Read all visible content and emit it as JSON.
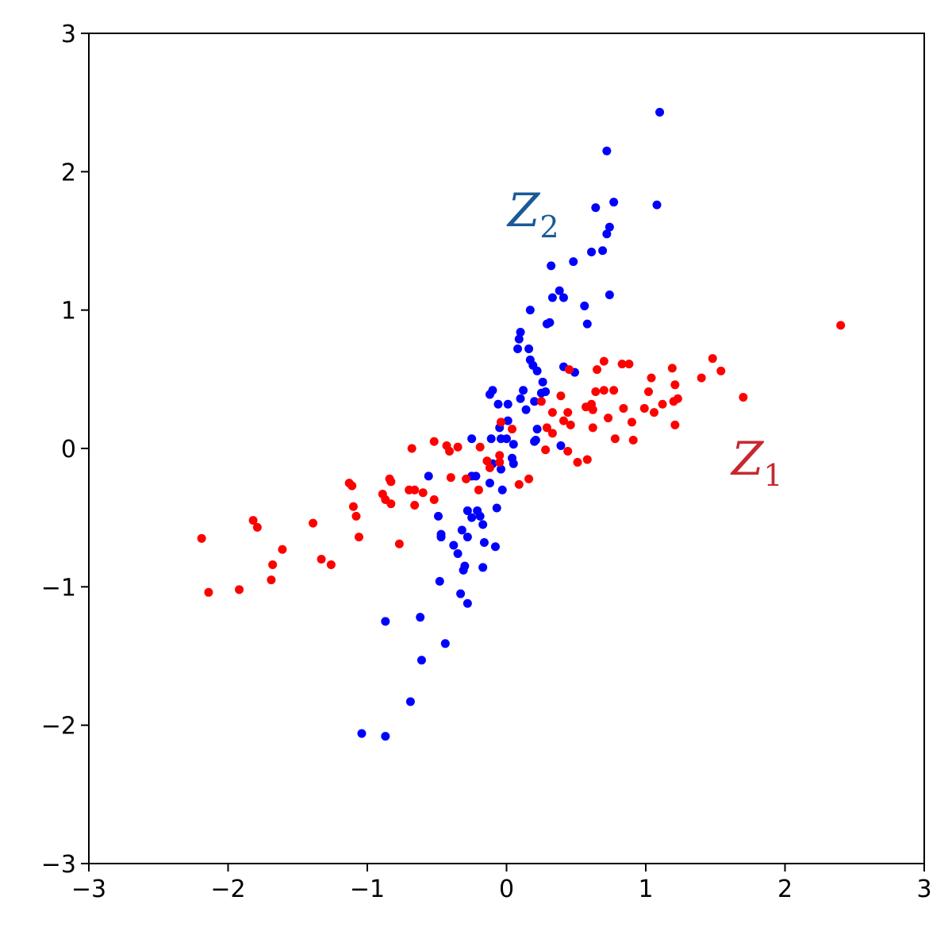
{
  "chart_data": {
    "type": "scatter",
    "xlim": [
      -3,
      3
    ],
    "ylim": [
      -3,
      3
    ],
    "xticks": [
      {
        "value": -3,
        "label": "−3"
      },
      {
        "value": -2,
        "label": "−2"
      },
      {
        "value": -1,
        "label": "−1"
      },
      0,
      1,
      2,
      3
    ],
    "yticks": [
      {
        "value": -3,
        "label": "−3"
      },
      {
        "value": -2,
        "label": "−2"
      },
      {
        "value": -1,
        "label": "−1"
      },
      0,
      1,
      2,
      3
    ],
    "annotations": [
      {
        "text": "Z",
        "subscript": "2",
        "color": "#1a5a96"
      },
      {
        "text": "Z",
        "subscript": "1",
        "color": "#c8282f"
      }
    ],
    "series": [
      {
        "color": "#0000ff",
        "x": [
          1.1,
          0.72,
          1.08,
          0.77,
          0.64,
          0.74,
          0.72,
          0.69,
          0.61,
          0.48,
          0.32,
          0.38,
          0.33,
          0.41,
          0.74,
          0.56,
          0.17,
          0.58,
          0.31,
          0.29,
          0.1,
          0.09,
          0.08,
          0.16,
          0.17,
          0.19,
          0.22,
          0.41,
          0.49,
          0.26,
          0.12,
          -0.1,
          -0.12,
          0.25,
          0.28,
          0.1,
          0.2,
          0.14,
          -0.06,
          0.01,
          0.01,
          -0.05,
          0.22,
          0.21,
          0.2,
          -0.11,
          -0.04,
          0.0,
          -0.25,
          0.05,
          0.39,
          0.04,
          0.05,
          -0.1,
          -0.04,
          -0.56,
          -0.25,
          -0.22,
          -0.12,
          -0.03,
          -0.07,
          -0.28,
          -0.21,
          -0.19,
          -0.25,
          -0.49,
          -0.17,
          -0.32,
          -0.47,
          -0.47,
          -0.28,
          -0.16,
          -0.08,
          -0.38,
          -0.35,
          -0.3,
          -0.31,
          -0.17,
          -0.48,
          -0.33,
          -0.28,
          -0.87,
          -0.62,
          -0.44,
          -0.61,
          -0.69,
          -1.04,
          -0.87
        ],
        "values": [
          2.43,
          2.15,
          1.76,
          1.78,
          1.74,
          1.6,
          1.55,
          1.43,
          1.42,
          1.35,
          1.32,
          1.14,
          1.09,
          1.09,
          1.11,
          1.03,
          1.0,
          0.9,
          0.91,
          0.9,
          0.84,
          0.79,
          0.72,
          0.72,
          0.64,
          0.6,
          0.56,
          0.59,
          0.55,
          0.48,
          0.42,
          0.42,
          0.39,
          0.4,
          0.41,
          0.36,
          0.34,
          0.28,
          0.32,
          0.32,
          0.2,
          0.15,
          0.14,
          0.06,
          0.05,
          0.07,
          0.07,
          0.07,
          0.07,
          0.03,
          0.02,
          -0.07,
          -0.11,
          -0.11,
          -0.15,
          -0.2,
          -0.2,
          -0.2,
          -0.25,
          -0.3,
          -0.43,
          -0.45,
          -0.45,
          -0.49,
          -0.5,
          -0.49,
          -0.55,
          -0.59,
          -0.62,
          -0.64,
          -0.64,
          -0.68,
          -0.71,
          -0.7,
          -0.76,
          -0.85,
          -0.88,
          -0.86,
          -0.96,
          -1.05,
          -1.12,
          -1.25,
          -1.22,
          -1.41,
          -1.53,
          -1.83,
          -2.06,
          -2.08
        ]
      },
      {
        "color": "#ff0000",
        "x": [
          2.4,
          -2.19,
          -2.14,
          -1.92,
          -1.82,
          -1.79,
          -1.69,
          -1.68,
          -1.61,
          -1.39,
          -1.33,
          -1.26,
          -1.13,
          -1.11,
          -1.1,
          -1.08,
          -1.06,
          -0.89,
          -0.87,
          -0.83,
          -0.84,
          -0.83,
          -0.77,
          -0.68,
          -0.7,
          -0.66,
          -0.66,
          -0.6,
          -0.52,
          -0.52,
          -0.43,
          -0.41,
          -0.4,
          -0.35,
          -0.29,
          -0.19,
          -0.2,
          -0.14,
          -0.12,
          -0.05,
          -0.05,
          -0.04,
          0.04,
          0.09,
          0.16,
          0.25,
          0.28,
          0.29,
          0.33,
          0.33,
          0.39,
          0.41,
          0.44,
          0.44,
          0.45,
          0.46,
          0.51,
          0.58,
          0.57,
          0.61,
          0.62,
          0.62,
          0.64,
          0.65,
          0.7,
          0.7,
          0.73,
          0.77,
          0.78,
          0.83,
          0.84,
          0.88,
          0.9,
          0.91,
          0.99,
          1.02,
          1.04,
          1.06,
          1.12,
          1.19,
          1.2,
          1.21,
          1.21,
          1.23,
          1.4,
          1.48,
          1.54,
          1.7
        ],
        "values": [
          0.89,
          -0.65,
          -1.04,
          -1.02,
          -0.52,
          -0.57,
          -0.95,
          -0.84,
          -0.73,
          -0.54,
          -0.8,
          -0.84,
          -0.25,
          -0.27,
          -0.42,
          -0.49,
          -0.64,
          -0.33,
          -0.37,
          -0.4,
          -0.22,
          -0.24,
          -0.69,
          0.0,
          -0.3,
          -0.3,
          -0.41,
          -0.32,
          0.05,
          -0.37,
          0.02,
          -0.02,
          -0.21,
          0.01,
          -0.22,
          0.01,
          -0.3,
          -0.09,
          -0.14,
          -0.05,
          -0.1,
          0.19,
          0.14,
          -0.26,
          -0.22,
          0.34,
          -0.01,
          0.15,
          0.26,
          0.11,
          0.38,
          0.2,
          0.26,
          -0.02,
          0.57,
          0.17,
          -0.1,
          -0.08,
          0.3,
          0.32,
          0.28,
          0.15,
          0.41,
          0.57,
          0.63,
          0.42,
          0.22,
          0.42,
          0.07,
          0.61,
          0.29,
          0.61,
          0.19,
          0.06,
          0.29,
          0.41,
          0.51,
          0.26,
          0.32,
          0.58,
          0.34,
          0.46,
          0.17,
          0.36,
          0.51,
          0.65,
          0.56,
          0.37
        ]
      }
    ]
  }
}
